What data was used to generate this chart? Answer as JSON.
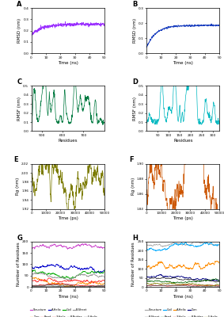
{
  "A": {
    "color": "#9B30FF",
    "xlabel": "Time (ns)",
    "ylabel": "RMSD (nm)",
    "xlim": [
      0,
      50
    ],
    "ylim": [
      0.0,
      0.4
    ],
    "yticks": [
      0.0,
      0.1,
      0.2,
      0.3,
      0.4
    ],
    "xticks": [
      0,
      10,
      20,
      30,
      40,
      50
    ],
    "mean_start": 0.16,
    "mean_end": 0.25,
    "noise": 0.015,
    "seed": 1
  },
  "B": {
    "color": "#1A3FBF",
    "xlabel": "Time (ns)",
    "ylabel": "RMSD (nm)",
    "xlim": [
      0,
      50
    ],
    "ylim": [
      0.0,
      0.3
    ],
    "yticks": [
      0.0,
      0.1,
      0.2,
      0.3
    ],
    "xticks": [
      0,
      10,
      20,
      30,
      40,
      50
    ],
    "mean_start": 0.04,
    "mean_end": 0.185,
    "noise": 0.006,
    "seed": 2
  },
  "C": {
    "color": "#007A40",
    "xlabel": "Residues",
    "ylabel": "RMSF (nm)",
    "xlim": [
      450,
      800
    ],
    "ylim": [
      0.0,
      0.5
    ],
    "yticks": [
      0.0,
      0.1,
      0.2,
      0.3,
      0.4,
      0.5
    ],
    "xticks": [
      500,
      600,
      700
    ],
    "xstart": 450,
    "xend": 800,
    "seed": 13
  },
  "D": {
    "color": "#00B8C0",
    "xlabel": "Residues",
    "ylabel": "RMSF (nm)",
    "xlim": [
      0,
      330
    ],
    "ylim": [
      0.0,
      0.5
    ],
    "yticks": [
      0.0,
      0.1,
      0.2,
      0.3,
      0.4,
      0.5
    ],
    "xticks": [
      50,
      100,
      150,
      200,
      250,
      300
    ],
    "xstart": 0,
    "xend": 330,
    "seed": 24
  },
  "E": {
    "color": "#7A7A00",
    "xlabel": "Time (ps)",
    "ylabel": "Rg (nm)",
    "xlim": [
      0,
      50000
    ],
    "ylim": [
      1.92,
      2.02
    ],
    "yticks": [
      1.92,
      1.94,
      1.96,
      1.98,
      2.0,
      2.02
    ],
    "xticks": [
      0,
      10000,
      20000,
      30000,
      40000,
      50000
    ],
    "mean": 1.968,
    "noise": 0.008,
    "seed": 5
  },
  "F": {
    "color": "#CC5500",
    "xlabel": "Time (ps)",
    "ylabel": "Rg (nm)",
    "xlim": [
      0,
      50000
    ],
    "ylim": [
      1.84,
      1.9
    ],
    "yticks": [
      1.84,
      1.86,
      1.88,
      1.9
    ],
    "xticks": [
      0,
      10000,
      20000,
      30000,
      40000,
      50000
    ],
    "mean": 1.862,
    "noise": 0.006,
    "seed": 6
  },
  "G": {
    "xlabel": "Time (ns)",
    "ylabel": "Number of Residues",
    "xlim": [
      0,
      50
    ],
    "ylim": [
      0,
      200
    ],
    "yticks": [
      0,
      50,
      100,
      150,
      200
    ],
    "xticks": [
      0,
      10,
      20,
      30,
      40,
      50
    ],
    "legend_row1": [
      "Structure",
      "A-Helix",
      "Coil",
      "B-Sheet"
    ],
    "legend_row2": [
      "Turn",
      "Bend",
      "3-Helix",
      "B-Bridge",
      "5-Helix"
    ],
    "series": {
      "Structure": {
        "color": "#CC44CC",
        "mean": 170,
        "std": 4,
        "seed": 10
      },
      "A-Helix": {
        "color": "#0000CC",
        "mean": 88,
        "std": 4,
        "seed": 11
      },
      "Coil": {
        "color": "#00AA00",
        "mean": 72,
        "std": 3,
        "seed": 12
      },
      "B-Sheet": {
        "color": "#999999",
        "mean": 52,
        "std": 3,
        "seed": 13
      },
      "Turn": {
        "color": "#FF8C00",
        "mean": 40,
        "std": 3,
        "seed": 14
      },
      "Bend": {
        "color": "#FF3333",
        "mean": 32,
        "std": 3,
        "seed": 15
      },
      "3-Helix": {
        "color": "#CC0000",
        "mean": 8,
        "std": 1,
        "seed": 16
      },
      "B-Bridge": {
        "color": "#555555",
        "mean": 4,
        "std": 1,
        "seed": 17
      },
      "5-Helix": {
        "color": "#222222",
        "mean": 1,
        "std": 0.3,
        "seed": 18
      }
    }
  },
  "H": {
    "xlabel": "Time (ns)",
    "ylabel": "Number of Residues",
    "xlim": [
      0,
      50
    ],
    "ylim": [
      0,
      250
    ],
    "yticks": [
      0,
      50,
      100,
      150,
      200,
      250
    ],
    "xticks": [
      0,
      10,
      20,
      30,
      40,
      50
    ],
    "legend_row1": [
      "Structure",
      "A-Helix",
      "Coil",
      "Turn"
    ],
    "legend_row2": [
      "B-Sheet",
      "Bend",
      "3-Helix",
      "B-Bridge",
      "5-Helix"
    ],
    "series": {
      "Structure": {
        "color": "#AAAAAA",
        "mean": 232,
        "std": 3,
        "seed": 20
      },
      "Coil": {
        "color": "#00AAFF",
        "mean": 208,
        "std": 4,
        "seed": 22
      },
      "A-Helix": {
        "color": "#FF8C00",
        "mean": 112,
        "std": 6,
        "seed": 21
      },
      "Turn": {
        "color": "#000080",
        "mean": 55,
        "std": 3,
        "seed": 23
      },
      "B-Sheet": {
        "color": "#333333",
        "mean": 42,
        "std": 2,
        "seed": 24
      },
      "Bend": {
        "color": "#006400",
        "mean": 32,
        "std": 2,
        "seed": 25
      },
      "3-Helix": {
        "color": "#CC0000",
        "mean": 8,
        "std": 1,
        "seed": 26
      },
      "B-Bridge": {
        "color": "#555555",
        "mean": 4,
        "std": 1,
        "seed": 27
      },
      "5-Helix": {
        "color": "#808000",
        "mean": 18,
        "std": 2,
        "seed": 28
      }
    }
  }
}
